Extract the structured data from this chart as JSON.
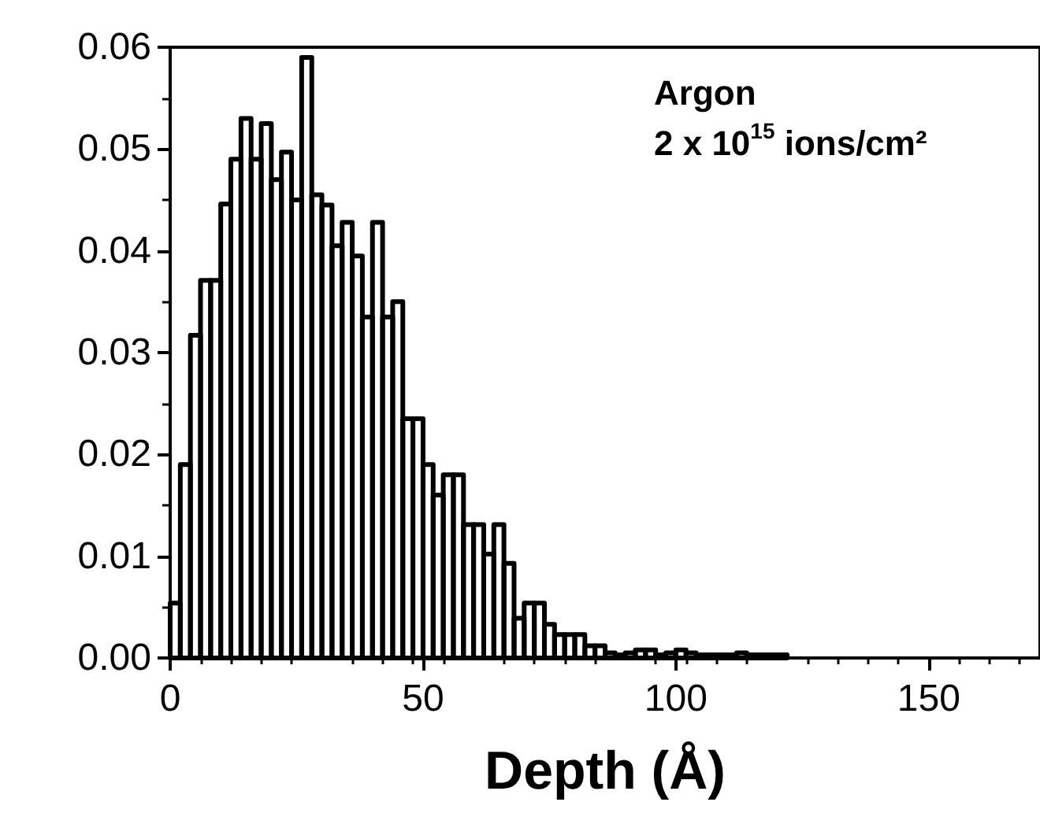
{
  "chart_data": {
    "type": "histogram",
    "xlabel": "Depth (Å)",
    "annotations": [
      "Argon",
      "2 x 10$^{15}$ ions/cm²"
    ],
    "color": "#000000",
    "bins": [
      0,
      2,
      4,
      6,
      8,
      10,
      12,
      14,
      16,
      18,
      20,
      22,
      24,
      26,
      28,
      30,
      32,
      34,
      36,
      38,
      40,
      42,
      44,
      46,
      48,
      50,
      52,
      54,
      56,
      58,
      60,
      62,
      64,
      66,
      68,
      70,
      72,
      74,
      76,
      78,
      80,
      82,
      84,
      86,
      88,
      90,
      92,
      94,
      96,
      98,
      100,
      102,
      104,
      106,
      108,
      110,
      112,
      114,
      116,
      118,
      120,
      122
    ],
    "values": [
      0.0054,
      0.019,
      0.0317,
      0.0371,
      0.0371,
      0.0446,
      0.049,
      0.053,
      0.049,
      0.0525,
      0.047,
      0.0497,
      0.045,
      0.059,
      0.0455,
      0.0445,
      0.0405,
      0.0428,
      0.0395,
      0.0335,
      0.0428,
      0.0335,
      0.035,
      0.0235,
      0.0235,
      0.019,
      0.016,
      0.018,
      0.018,
      0.0131,
      0.0131,
      0.0102,
      0.0131,
      0.0093,
      0.0039,
      0.0054,
      0.0054,
      0.0033,
      0.0023,
      0.0023,
      0.0023,
      0.0012,
      0.0012,
      0.0005,
      0.0003,
      0.0005,
      0.0008,
      0.0008,
      0.0003,
      0.0005,
      0.0008,
      0.0005,
      0.0003,
      0.0003,
      0.0003,
      0.0003,
      0.0005,
      0.0003,
      0.0003,
      0.0003,
      0.0003
    ],
    "xlim": [
      0,
      172
    ],
    "xticks": [
      0,
      50,
      100,
      150
    ],
    "ylim": [
      0,
      0.06
    ],
    "yticks": [
      {
        "value": 0,
        "label": "0.00"
      },
      {
        "value": 0.01,
        "label": "0.01"
      },
      {
        "value": 0.02,
        "label": "0.02"
      },
      {
        "value": 0.03,
        "label": "0.03"
      },
      {
        "value": 0.04,
        "label": "0.04"
      },
      {
        "value": 0.05,
        "label": "0.05"
      },
      {
        "value": 0.06,
        "label": "0.06"
      }
    ],
    "grid": false
  }
}
